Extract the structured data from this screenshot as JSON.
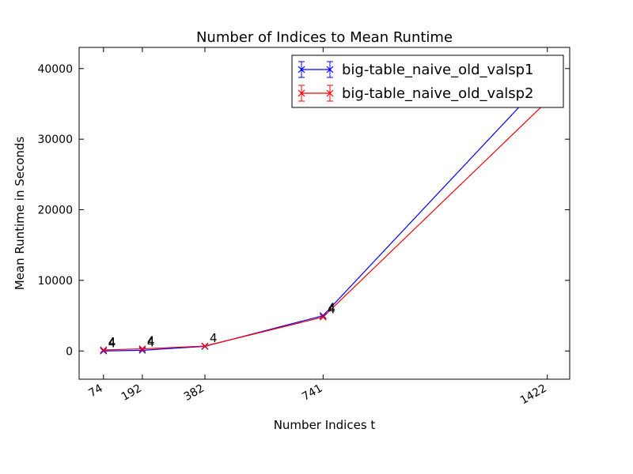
{
  "chart_data": {
    "type": "line",
    "title": "Number of Indices to Mean Runtime",
    "xlabel": "Number Indices t",
    "ylabel": "Mean Runtime in Seconds",
    "x": [
      74,
      192,
      382,
      741,
      1422
    ],
    "x_tick_labels": [
      "74",
      "192",
      "382",
      "741",
      "1422"
    ],
    "xlim": [
      0,
      1490
    ],
    "ylim": [
      -4000,
      43000
    ],
    "y_ticks": [
      0,
      10000,
      20000,
      30000,
      40000
    ],
    "y_tick_labels": [
      "0",
      "10000",
      "20000",
      "30000",
      "40000"
    ],
    "grid": false,
    "legend_position": "top-right",
    "series": [
      {
        "name": "big-table_naive_old_valsp1",
        "color": "#0000ff",
        "values": [
          0,
          100,
          650,
          5000,
          38800
        ],
        "errors": [
          0,
          0,
          0,
          0,
          0
        ],
        "annotations": [
          "4",
          "4",
          "",
          "4",
          ""
        ]
      },
      {
        "name": "big-table_naive_old_valsp2",
        "color": "#ff0000",
        "values": [
          150,
          300,
          700,
          4800,
          35400
        ],
        "errors": [
          0,
          0,
          0,
          0,
          800
        ],
        "annotations": [
          "4",
          "4",
          "4",
          "4",
          ""
        ]
      }
    ]
  }
}
